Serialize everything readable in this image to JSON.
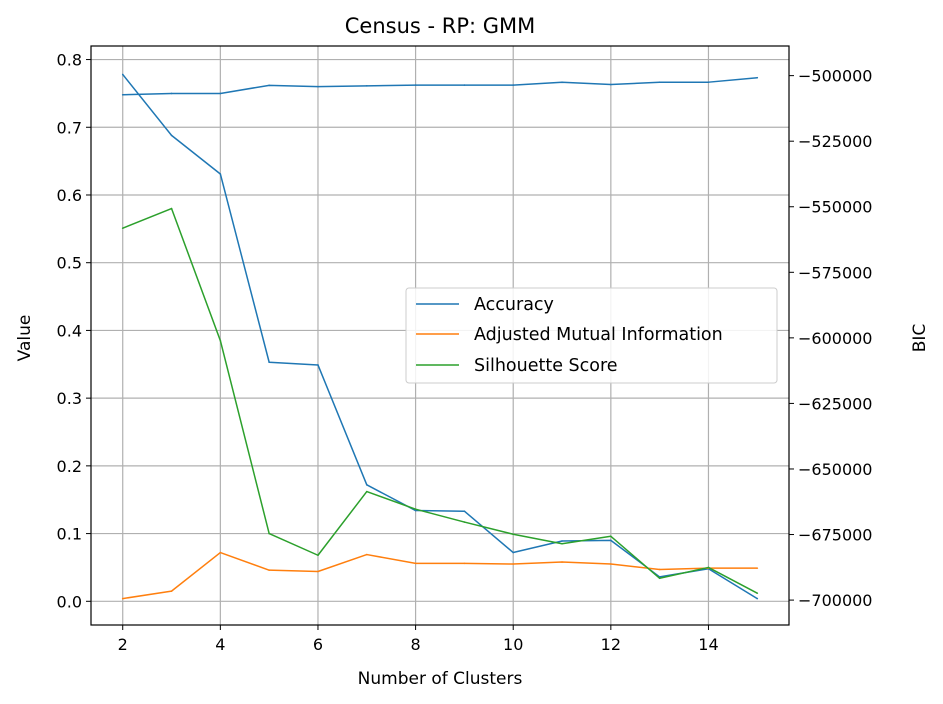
{
  "chart_data": {
    "type": "line",
    "title": "Census - RP: GMM",
    "xlabel": "Number of Clusters",
    "ylabel": "Value",
    "ylabel_right": "BIC",
    "xlim": [
      1.35,
      15.65
    ],
    "ylim": [
      -0.035,
      0.82
    ],
    "ylim_right": [
      -709500,
      -488700
    ],
    "x_ticks": [
      2,
      4,
      6,
      8,
      10,
      12,
      14
    ],
    "y_ticks": [
      0.0,
      0.1,
      0.2,
      0.3,
      0.4,
      0.5,
      0.6,
      0.7,
      0.8
    ],
    "y_tick_labels": [
      "0.0",
      "0.1",
      "0.2",
      "0.3",
      "0.4",
      "0.5",
      "0.6",
      "0.7",
      "0.8"
    ],
    "y_right_ticks": [
      -500000,
      -525000,
      -550000,
      -575000,
      -600000,
      -625000,
      -650000,
      -675000,
      -700000
    ],
    "y_right_tick_labels": [
      "−500000",
      "−525000",
      "−550000",
      "−575000",
      "−600000",
      "−625000",
      "−650000",
      "−675000",
      "−700000"
    ],
    "grid": true,
    "legend_position": "center-right",
    "x": [
      2,
      3,
      4,
      5,
      6,
      7,
      8,
      9,
      10,
      11,
      12,
      13,
      14,
      15
    ],
    "series": [
      {
        "name": "Accuracy",
        "color": "#1f77b4",
        "axis": "left",
        "values": [
          0.778,
          0.688,
          0.631,
          0.353,
          0.349,
          0.172,
          0.134,
          0.133,
          0.072,
          0.089,
          0.09,
          0.036,
          0.048,
          0.004
        ]
      },
      {
        "name": "Adjusted Mutual Information",
        "color": "#ff7f0e",
        "axis": "left",
        "values": [
          0.004,
          0.015,
          0.072,
          0.046,
          0.044,
          0.069,
          0.056,
          0.056,
          0.055,
          0.058,
          0.055,
          0.047,
          0.049,
          0.049
        ]
      },
      {
        "name": "Silhouette Score",
        "color": "#2ca02c",
        "axis": "left",
        "values": [
          0.551,
          0.58,
          0.385,
          0.1,
          0.068,
          0.162,
          0.136,
          0.117,
          0.099,
          0.085,
          0.096,
          0.034,
          0.05,
          0.012
        ]
      },
      {
        "color": "#1f77b4",
        "axis": "right",
        "values": [
          -507300,
          -506800,
          -506800,
          -503700,
          -504200,
          -503900,
          -503600,
          -503600,
          -503600,
          -502500,
          -503400,
          -502500,
          -502500,
          -500800
        ]
      }
    ]
  }
}
